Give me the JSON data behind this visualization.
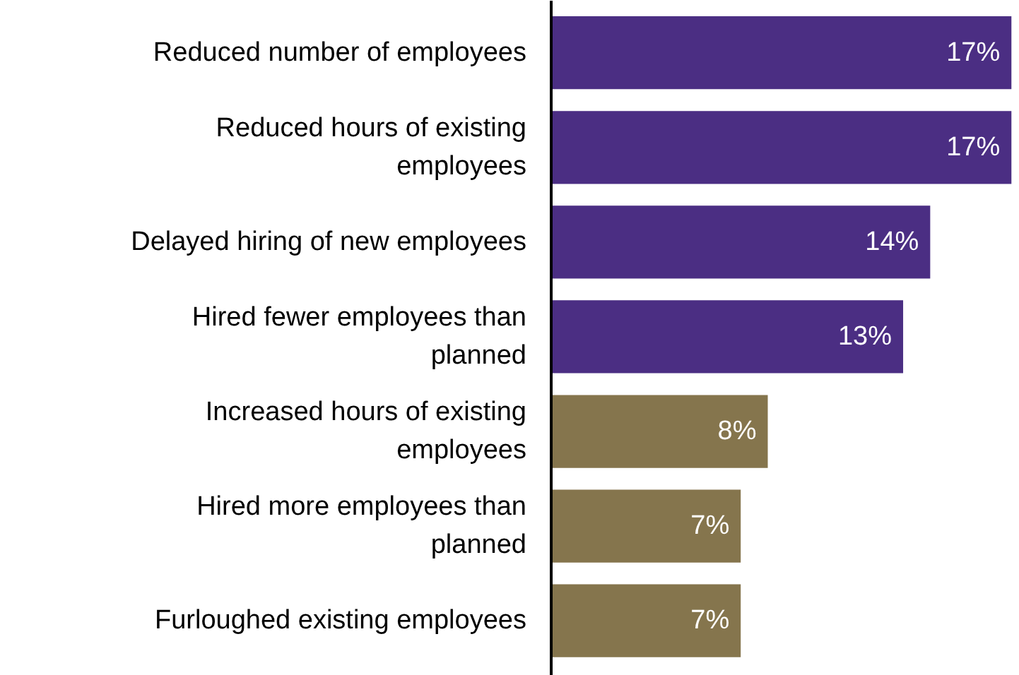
{
  "chart_data": {
    "type": "bar",
    "orientation": "horizontal",
    "categories": [
      "Reduced number of employees",
      "Reduced hours of existing employees",
      "Delayed hiring of new employees",
      "Hired fewer employees than planned",
      "Increased hours of existing employees",
      "Hired more employees than planned",
      "Furloughed existing employees"
    ],
    "values": [
      17,
      17,
      14,
      13,
      8,
      7,
      7
    ],
    "colors": [
      "#4b2e83",
      "#4b2e83",
      "#4b2e83",
      "#4b2e83",
      "#85754d",
      "#85754d",
      "#85754d"
    ],
    "value_labels": [
      "17%",
      "17%",
      "14%",
      "13%",
      "8%",
      "7%",
      "7%"
    ],
    "grid": false
  }
}
